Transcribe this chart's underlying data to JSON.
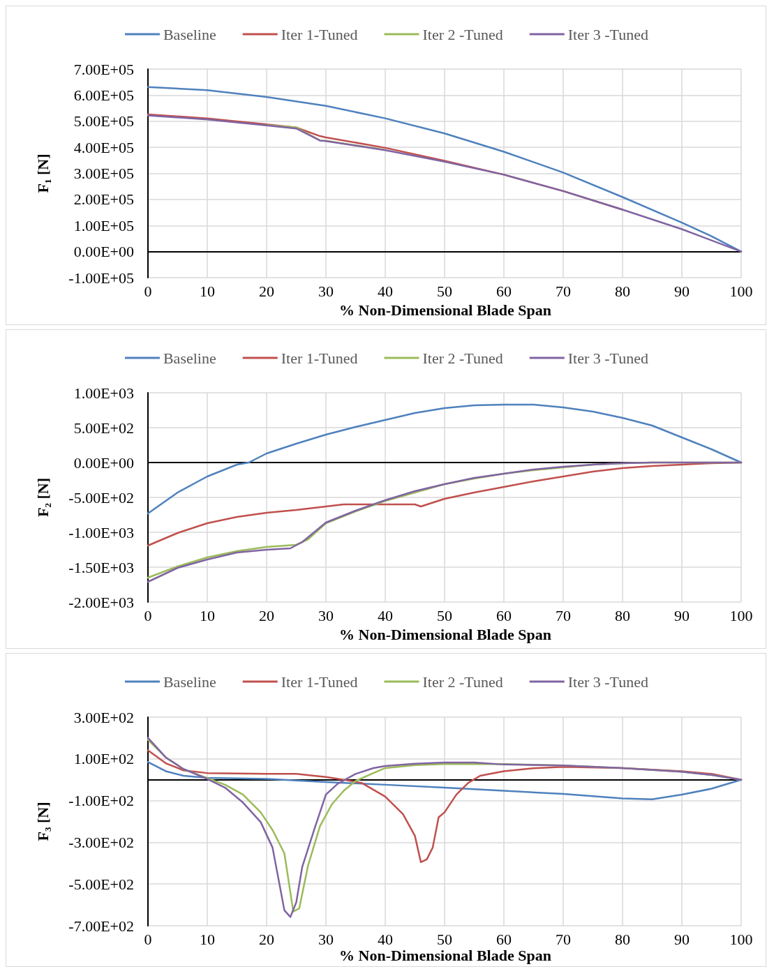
{
  "chart_data": [
    {
      "type": "line",
      "xlabel": "% Non-Dimensional Blade Span",
      "ylabel": "F₁ [N]",
      "legend": "top",
      "grid": true,
      "marker": "none",
      "line_style": "solid",
      "xlim": [
        0,
        100
      ],
      "xticks": [
        0,
        10,
        20,
        30,
        40,
        50,
        60,
        70,
        80,
        90,
        100
      ],
      "ylim": [
        -100000,
        700000
      ],
      "yticks": [
        {
          "value": -100000,
          "label": "-1.00E+05"
        },
        {
          "value": 0,
          "label": "0.00E+00"
        },
        {
          "value": 100000,
          "label": "1.00E+05"
        },
        {
          "value": 200000,
          "label": "2.00E+05"
        },
        {
          "value": 300000,
          "label": "3.00E+05"
        },
        {
          "value": 400000,
          "label": "4.00E+05"
        },
        {
          "value": 500000,
          "label": "5.00E+05"
        },
        {
          "value": 600000,
          "label": "6.00E+05"
        },
        {
          "value": 700000,
          "label": "7.00E+05"
        }
      ],
      "series": [
        {
          "name": "Baseline",
          "color": "#4f81bd",
          "x": [
            0,
            10,
            20,
            30,
            40,
            50,
            60,
            70,
            80,
            90,
            95,
            100
          ],
          "values": [
            631000,
            619000,
            593000,
            559000,
            511000,
            453000,
            383000,
            303000,
            209000,
            111000,
            59000,
            0
          ]
        },
        {
          "name": "Iter 1-Tuned",
          "color": "#c0504d",
          "x": [
            0,
            10,
            20,
            25,
            29,
            30,
            40,
            50,
            60,
            70,
            80
          ],
          "values": [
            526000,
            511000,
            488000,
            476000,
            443000,
            438000,
            398000,
            348000,
            295000,
            232000,
            161000
          ]
        },
        {
          "name": "Iter 2 -Tuned",
          "color": "#9bbb59",
          "x": [
            20,
            25,
            29,
            30,
            40
          ],
          "values": [
            485000,
            476000,
            426000,
            425000,
            390000
          ]
        },
        {
          "name": "Iter 3 -Tuned",
          "color": "#8064a2",
          "x": [
            0,
            10,
            20,
            25,
            29,
            30,
            40,
            50,
            60,
            70,
            80,
            90,
            100
          ],
          "values": [
            522000,
            507000,
            484000,
            472000,
            426000,
            424000,
            389000,
            345000,
            295000,
            232000,
            161000,
            86000,
            0
          ]
        }
      ]
    },
    {
      "type": "line",
      "xlabel": "% Non-Dimensional Blade Span",
      "ylabel": "F₂ [N]",
      "legend": "top",
      "grid": true,
      "marker": "none",
      "line_style": "solid",
      "xlim": [
        0,
        100
      ],
      "xticks": [
        0,
        10,
        20,
        30,
        40,
        50,
        60,
        70,
        80,
        90,
        100
      ],
      "ylim": [
        -2000,
        1000
      ],
      "yticks": [
        {
          "value": -2000,
          "label": "-2.00E+03"
        },
        {
          "value": -1500,
          "label": "-1.50E+03"
        },
        {
          "value": -1000,
          "label": "-1.00E+03"
        },
        {
          "value": -500,
          "label": "-5.00E+02"
        },
        {
          "value": 0,
          "label": "0.00E+00"
        },
        {
          "value": 500,
          "label": "5.00E+02"
        },
        {
          "value": 1000,
          "label": "1.00E+03"
        }
      ],
      "series": [
        {
          "name": "Baseline",
          "color": "#4f81bd",
          "x": [
            0,
            5,
            10,
            15,
            17,
            20,
            25,
            30,
            35,
            40,
            45,
            50,
            55,
            60,
            65,
            70,
            75,
            80,
            85,
            90,
            95,
            100
          ],
          "values": [
            -730,
            -430,
            -200,
            -30,
            0,
            130,
            270,
            400,
            510,
            610,
            710,
            780,
            820,
            830,
            830,
            790,
            730,
            640,
            530,
            360,
            190,
            0
          ]
        },
        {
          "name": "Iter 1-Tuned",
          "color": "#c0504d",
          "x": [
            0,
            5,
            10,
            15,
            20,
            25,
            30,
            33,
            40,
            45,
            46,
            50,
            55,
            60,
            65,
            70,
            75,
            80,
            85,
            90,
            95,
            100
          ],
          "values": [
            -1190,
            -1010,
            -870,
            -780,
            -720,
            -680,
            -630,
            -600,
            -600,
            -600,
            -630,
            -520,
            -430,
            -350,
            -270,
            -200,
            -130,
            -80,
            -50,
            -30,
            -10,
            0
          ]
        },
        {
          "name": "Iter 2 -Tuned",
          "color": "#9bbb59",
          "x": [
            0,
            5,
            10,
            15,
            20,
            25,
            27,
            30,
            35,
            40,
            45,
            50,
            55,
            60,
            65,
            70,
            75,
            80,
            85,
            100
          ],
          "values": [
            -1650,
            -1490,
            -1360,
            -1270,
            -1210,
            -1180,
            -1100,
            -870,
            -700,
            -550,
            -430,
            -310,
            -230,
            -160,
            -110,
            -70,
            -30,
            -10,
            0,
            0
          ]
        },
        {
          "name": "Iter 3 -Tuned",
          "color": "#8064a2",
          "x": [
            0,
            5,
            10,
            15,
            20,
            24,
            26,
            30,
            35,
            40,
            45,
            50,
            55,
            60,
            65,
            70,
            75,
            80,
            85,
            100
          ],
          "values": [
            -1710,
            -1510,
            -1390,
            -1290,
            -1250,
            -1230,
            -1140,
            -860,
            -690,
            -540,
            -410,
            -310,
            -220,
            -160,
            -100,
            -60,
            -30,
            -10,
            0,
            0
          ]
        }
      ]
    },
    {
      "type": "line",
      "xlabel": "% Non-Dimensional Blade Span",
      "ylabel": "F₃ [N]",
      "legend": "top",
      "grid": true,
      "marker": "none",
      "line_style": "solid",
      "xlim": [
        0,
        100
      ],
      "xticks": [
        0,
        10,
        20,
        30,
        40,
        50,
        60,
        70,
        80,
        90,
        100
      ],
      "ylim": [
        -700,
        300
      ],
      "yticks": [
        {
          "value": -700,
          "label": "-7.00E+02"
        },
        {
          "value": -500,
          "label": "-5.00E+02"
        },
        {
          "value": -300,
          "label": "-3.00E+02"
        },
        {
          "value": -100,
          "label": "-1.00E+02"
        },
        {
          "value": 100,
          "label": "1.00E+02"
        },
        {
          "value": 300,
          "label": "3.00E+02"
        }
      ],
      "series": [
        {
          "name": "Baseline",
          "color": "#4f81bd",
          "x": [
            0,
            3,
            6,
            10,
            20,
            30,
            40,
            50,
            60,
            70,
            80,
            85,
            90,
            95,
            100
          ],
          "values": [
            85,
            41,
            19,
            9,
            4,
            -11,
            -24,
            -38,
            -53,
            -68,
            -90,
            -94,
            -71,
            -43,
            0
          ]
        },
        {
          "name": "Iter 1-Tuned",
          "color": "#c0504d",
          "x": [
            0,
            3,
            6,
            10,
            20,
            25,
            28,
            30,
            33,
            36,
            40,
            43,
            45,
            46,
            47,
            48,
            49,
            50,
            52,
            54,
            56,
            60,
            65,
            70,
            80,
            90,
            95,
            100
          ],
          "values": [
            141,
            79,
            45,
            32,
            28,
            28,
            19,
            13,
            0,
            -15,
            -81,
            -165,
            -269,
            -395,
            -382,
            -325,
            -180,
            -156,
            -71,
            -15,
            19,
            41,
            55,
            62,
            56,
            41,
            28,
            0
          ]
        },
        {
          "name": "Iter 2 -Tuned",
          "color": "#9bbb59",
          "x": [
            0,
            3,
            6,
            10,
            13,
            16,
            19,
            21,
            23,
            24.5,
            25.5,
            27,
            29,
            31,
            33,
            35,
            38,
            40,
            45,
            50,
            60,
            70,
            80,
            90,
            95,
            100
          ],
          "values": [
            192,
            107,
            51,
            8,
            -24,
            -71,
            -156,
            -241,
            -353,
            -632,
            -617,
            -410,
            -222,
            -118,
            -53,
            -6,
            32,
            56,
            70,
            75,
            75,
            68,
            56,
            38,
            23,
            0
          ]
        },
        {
          "name": "Iter 3 -Tuned",
          "color": "#8064a2",
          "x": [
            0,
            3,
            6,
            10,
            13,
            16,
            19,
            21,
            23,
            24,
            25,
            26,
            28,
            30,
            32,
            35,
            38,
            40,
            45,
            50,
            55,
            60,
            70,
            80,
            90,
            95,
            100
          ],
          "values": [
            201,
            107,
            51,
            4,
            -38,
            -109,
            -203,
            -325,
            -626,
            -658,
            -588,
            -419,
            -241,
            -71,
            -19,
            28,
            56,
            66,
            77,
            83,
            83,
            73,
            68,
            56,
            38,
            23,
            0
          ]
        }
      ]
    }
  ]
}
